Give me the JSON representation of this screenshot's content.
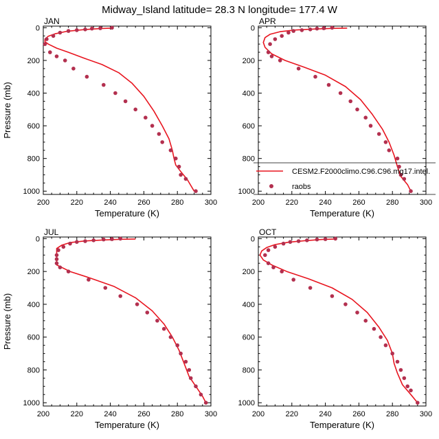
{
  "figure": {
    "title": "Midway_Island  latitude= 28.3 N longitude= 177.4 W"
  },
  "legend": {
    "model_label": "CESM2.F2000climo.C96.C96.mg17.intel.",
    "obs_label": "raobs"
  },
  "colors": {
    "model_line": "#e8141e",
    "obs_marker": "#b3304f"
  },
  "chart_data": [
    {
      "type": "line",
      "title": "JAN",
      "xlabel": "Temperature (K)",
      "ylabel": "Pressure (mb)",
      "xlim": [
        200,
        300
      ],
      "ylim": [
        1020,
        -10
      ],
      "x_ticks": [
        200,
        220,
        240,
        260,
        280,
        300
      ],
      "y_ticks": [
        0,
        200,
        400,
        600,
        800,
        1000
      ],
      "series": [
        {
          "name": "CESM2.F2000climo.C96.C96.mg17.intel.",
          "style": "line",
          "points": [
            [
              241,
              2
            ],
            [
              234,
              5
            ],
            [
              224,
              12
            ],
            [
              214,
              22
            ],
            [
              207,
              37
            ],
            [
              203,
              52
            ],
            [
              201,
              70
            ],
            [
              201,
              85
            ],
            [
              203,
              100
            ],
            [
              208,
              125
            ],
            [
              215,
              150
            ],
            [
              224,
              185
            ],
            [
              235,
              225
            ],
            [
              245,
              275
            ],
            [
              253,
              340
            ],
            [
              260,
              420
            ],
            [
              266,
              510
            ],
            [
              271,
              600
            ],
            [
              275,
              680
            ],
            [
              277,
              750
            ],
            [
              278,
              800
            ],
            [
              279,
              840
            ],
            [
              282,
              880
            ],
            [
              286,
              930
            ],
            [
              290,
              1000
            ]
          ]
        },
        {
          "name": "raobs",
          "style": "marker",
          "points": [
            [
              241,
              0
            ],
            [
              234,
              3
            ],
            [
              229,
              5
            ],
            [
              225,
              10
            ],
            [
              220,
              15
            ],
            [
              215,
              20
            ],
            [
              210,
              30
            ],
            [
              206,
              50
            ],
            [
              202,
              70
            ],
            [
              201,
              100
            ],
            [
              204,
              150
            ],
            [
              208,
              175
            ],
            [
              213,
              200
            ],
            [
              218,
              250
            ],
            [
              226,
              300
            ],
            [
              236,
              350
            ],
            [
              243,
              400
            ],
            [
              249,
              450
            ],
            [
              255,
              500
            ],
            [
              261,
              550
            ],
            [
              265,
              600
            ],
            [
              269,
              650
            ],
            [
              271,
              700
            ],
            [
              276,
              750
            ],
            [
              279,
              800
            ],
            [
              281,
              850
            ],
            [
              282,
              900
            ],
            [
              285,
              925
            ],
            [
              291,
              1000
            ]
          ]
        }
      ]
    },
    {
      "type": "line",
      "title": "APR",
      "xlabel": "Temperature (K)",
      "ylabel": "",
      "xlim": [
        200,
        300
      ],
      "ylim": [
        1020,
        -10
      ],
      "x_ticks": [
        200,
        220,
        240,
        260,
        280,
        300
      ],
      "y_ticks": [
        0,
        200,
        400,
        600,
        800,
        1000
      ],
      "legend": "bottom-right",
      "series": [
        {
          "name": "CESM2.F2000climo.C96.C96.mg17.intel.",
          "style": "line",
          "points": [
            [
              253,
              2
            ],
            [
              244,
              4
            ],
            [
              233,
              8
            ],
            [
              222,
              14
            ],
            [
              213,
              24
            ],
            [
              207,
              40
            ],
            [
              204,
              60
            ],
            [
              203,
              90
            ],
            [
              204,
              120
            ],
            [
              208,
              160
            ],
            [
              216,
              200
            ],
            [
              227,
              240
            ],
            [
              240,
              290
            ],
            [
              252,
              360
            ],
            [
              261,
              440
            ],
            [
              268,
              530
            ],
            [
              274,
              620
            ],
            [
              278,
              700
            ],
            [
              281,
              780
            ],
            [
              283,
              850
            ],
            [
              285,
              910
            ],
            [
              289,
              960
            ],
            [
              291,
              1000
            ]
          ]
        },
        {
          "name": "raobs",
          "style": "marker",
          "points": [
            [
              244,
              0
            ],
            [
              239,
              3
            ],
            [
              235,
              5
            ],
            [
              231,
              10
            ],
            [
              226,
              15
            ],
            [
              221,
              20
            ],
            [
              218,
              30
            ],
            [
              214,
              50
            ],
            [
              210,
              70
            ],
            [
              207,
              100
            ],
            [
              206,
              150
            ],
            [
              208,
              175
            ],
            [
              213,
              200
            ],
            [
              224,
              250
            ],
            [
              234,
              300
            ],
            [
              242,
              350
            ],
            [
              249,
              400
            ],
            [
              255,
              450
            ],
            [
              259,
              500
            ],
            [
              264,
              550
            ],
            [
              267,
              600
            ],
            [
              272,
              650
            ],
            [
              276,
              700
            ],
            [
              278,
              750
            ],
            [
              283,
              800
            ],
            [
              284,
              850
            ],
            [
              285,
              900
            ],
            [
              287,
              925
            ],
            [
              291,
              1000
            ]
          ]
        }
      ]
    },
    {
      "type": "line",
      "title": "JUL",
      "xlabel": "Temperature (K)",
      "ylabel": "Pressure (mb)",
      "xlim": [
        200,
        300
      ],
      "ylim": [
        1020,
        -10
      ],
      "x_ticks": [
        200,
        220,
        240,
        260,
        280,
        300
      ],
      "y_ticks": [
        0,
        200,
        400,
        600,
        800,
        1000
      ],
      "series": [
        {
          "name": "CESM2.F2000climo.C96.C96.mg17.intel.",
          "style": "line",
          "points": [
            [
              255,
              2
            ],
            [
              246,
              4
            ],
            [
              236,
              8
            ],
            [
              225,
              14
            ],
            [
              216,
              24
            ],
            [
              211,
              40
            ],
            [
              208,
              60
            ],
            [
              208,
              90
            ],
            [
              208,
              130
            ],
            [
              208,
              160
            ],
            [
              216,
              200
            ],
            [
              228,
              240
            ],
            [
              242,
              290
            ],
            [
              255,
              360
            ],
            [
              265,
              440
            ],
            [
              272,
              520
            ],
            [
              277,
              600
            ],
            [
              281,
              680
            ],
            [
              284,
              760
            ],
            [
              287,
              840
            ],
            [
              291,
              900
            ],
            [
              295,
              960
            ],
            [
              297,
              1000
            ]
          ]
        },
        {
          "name": "raobs",
          "style": "marker",
          "points": [
            [
              246,
              0
            ],
            [
              241,
              3
            ],
            [
              236,
              5
            ],
            [
              230,
              10
            ],
            [
              225,
              15
            ],
            [
              220,
              20
            ],
            [
              216,
              30
            ],
            [
              212,
              50
            ],
            [
              209,
              70
            ],
            [
              208,
              100
            ],
            [
              208,
              125
            ],
            [
              208,
              150
            ],
            [
              210,
              175
            ],
            [
              215,
              200
            ],
            [
              227,
              250
            ],
            [
              237,
              300
            ],
            [
              246,
              350
            ],
            [
              256,
              400
            ],
            [
              262,
              450
            ],
            [
              268,
              500
            ],
            [
              272,
              550
            ],
            [
              276,
              600
            ],
            [
              280,
              650
            ],
            [
              282,
              700
            ],
            [
              285,
              750
            ],
            [
              287,
              800
            ],
            [
              288,
              850
            ],
            [
              291,
              900
            ],
            [
              294,
              950
            ],
            [
              297,
              1000
            ]
          ]
        }
      ]
    },
    {
      "type": "line",
      "title": "OCT",
      "xlabel": "Temperature (K)",
      "ylabel": "",
      "xlim": [
        200,
        300
      ],
      "ylim": [
        1020,
        -10
      ],
      "x_ticks": [
        200,
        220,
        240,
        260,
        280,
        300
      ],
      "y_ticks": [
        0,
        200,
        400,
        600,
        800,
        1000
      ],
      "series": [
        {
          "name": "CESM2.F2000climo.C96.C96.mg17.intel.",
          "style": "line",
          "points": [
            [
              246,
              2
            ],
            [
              238,
              5
            ],
            [
              228,
              12
            ],
            [
              218,
              22
            ],
            [
              210,
              36
            ],
            [
              205,
              54
            ],
            [
              202,
              75
            ],
            [
              201,
              100
            ],
            [
              203,
              130
            ],
            [
              208,
              160
            ],
            [
              217,
              200
            ],
            [
              230,
              245
            ],
            [
              244,
              300
            ],
            [
              256,
              370
            ],
            [
              265,
              450
            ],
            [
              272,
              540
            ],
            [
              277,
              620
            ],
            [
              280,
              700
            ],
            [
              281,
              760
            ],
            [
              283,
              820
            ],
            [
              286,
              890
            ],
            [
              291,
              950
            ],
            [
              295,
              1000
            ]
          ]
        },
        {
          "name": "raobs",
          "style": "marker",
          "points": [
            [
              246,
              0
            ],
            [
              240,
              3
            ],
            [
              235,
              5
            ],
            [
              229,
              10
            ],
            [
              224,
              15
            ],
            [
              219,
              20
            ],
            [
              215,
              30
            ],
            [
              210,
              50
            ],
            [
              206,
              70
            ],
            [
              204,
              100
            ],
            [
              206,
              150
            ],
            [
              209,
              175
            ],
            [
              214,
              200
            ],
            [
              221,
              250
            ],
            [
              231,
              300
            ],
            [
              244,
              350
            ],
            [
              252,
              400
            ],
            [
              259,
              450
            ],
            [
              264,
              500
            ],
            [
              269,
              550
            ],
            [
              273,
              600
            ],
            [
              276,
              650
            ],
            [
              280,
              700
            ],
            [
              283,
              750
            ],
            [
              285,
              800
            ],
            [
              287,
              850
            ],
            [
              289,
              900
            ],
            [
              291,
              925
            ],
            [
              295,
              1000
            ]
          ]
        }
      ]
    }
  ]
}
